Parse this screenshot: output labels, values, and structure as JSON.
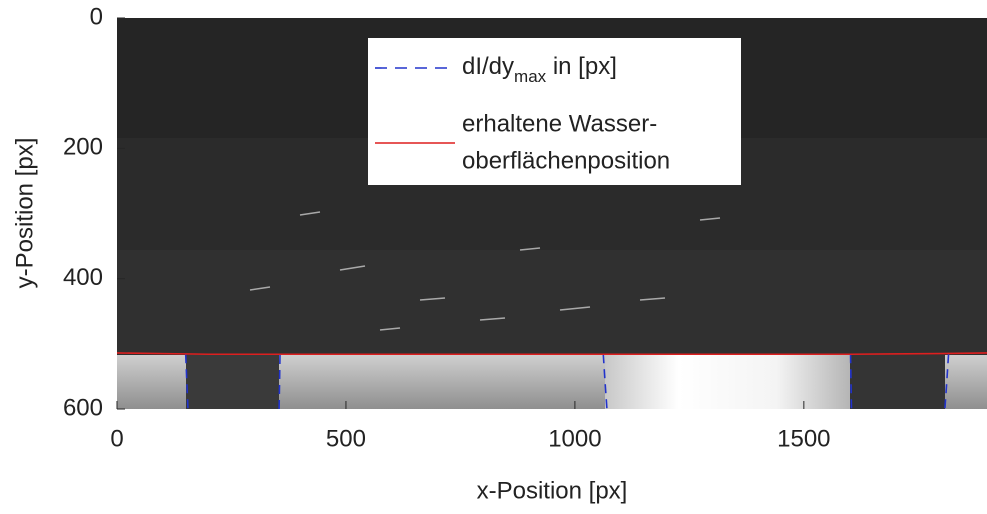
{
  "chart_data": {
    "type": "line",
    "xlabel": "x-Position [px]",
    "ylabel": "y-Position [px]",
    "xlim": [
      0,
      1900
    ],
    "xticks": [
      0,
      500,
      1000,
      1500
    ],
    "ylim": [
      600,
      0
    ],
    "yticks": [
      0,
      200,
      400,
      600
    ],
    "series": [
      {
        "name": "dI/dy",
        "name_sub": "max",
        "name_suffix": " in [px]",
        "color": "#2233cc",
        "dashed": true,
        "x": [
          150,
          152,
          155,
          null,
          354,
          355,
          356,
          null,
          1062,
          1066,
          1070,
          null,
          1602,
          1603,
          1604,
          null,
          1816,
          1812,
          1808
        ],
        "values": [
          516,
          550,
          600,
          null,
          600,
          560,
          516,
          null,
          516,
          560,
          600,
          null,
          516,
          560,
          600,
          null,
          516,
          560,
          600
        ]
      },
      {
        "name": [
          "erhaltene Wasser-",
          "oberflächenposition"
        ],
        "color": "#dd1f1f",
        "dashed": false,
        "x": [
          0,
          200,
          400,
          600,
          800,
          1000,
          1200,
          1400,
          1600,
          1800,
          1900
        ],
        "values": [
          514,
          516,
          516,
          516,
          516,
          516,
          516,
          516,
          516,
          515,
          514
        ]
      }
    ]
  }
}
